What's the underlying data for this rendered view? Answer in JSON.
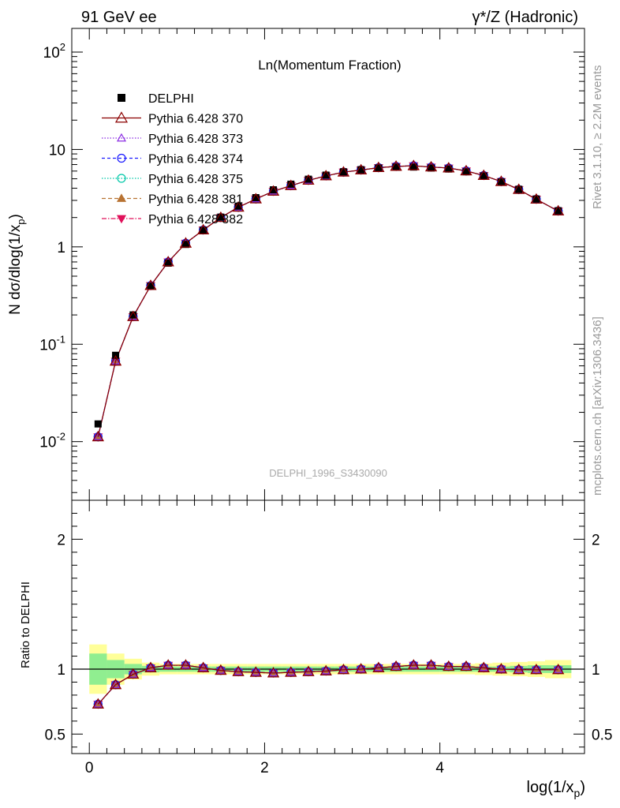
{
  "header": {
    "left_title": "91 GeV ee",
    "right_title": "γ*/Z (Hadronic)",
    "side_text_top": "Rivet 3.1.10, ≥ 2.2M events",
    "side_text_bottom": "mcplots.cern.ch [arXiv:1306.3436]",
    "watermark": "DELPHI_1996_S3430090"
  },
  "chart_data": [
    {
      "type": "scatter",
      "title": "Ln(Momentum Fraction)",
      "ylabel": "N dσ/dlog(1/x_p)",
      "xlabel": "log(1/x_p)",
      "yscale": "log",
      "xlim": [
        -0.2,
        5.65
      ],
      "ylim": [
        0.0025,
        175
      ],
      "ytick_labels": [
        "10^-2",
        "10^-1",
        "1",
        "10",
        "10^2"
      ],
      "legend_position": "top-left",
      "x": [
        0.1,
        0.3,
        0.5,
        0.7,
        0.9,
        1.1,
        1.3,
        1.5,
        1.7,
        1.9,
        2.1,
        2.3,
        2.5,
        2.7,
        2.9,
        3.1,
        3.3,
        3.5,
        3.7,
        3.9,
        4.1,
        4.3,
        4.5,
        4.7,
        4.9,
        5.1,
        5.35
      ],
      "series": [
        {
          "name": "DELPHI",
          "color": "#000000",
          "marker": "square",
          "values": [
            0.0152,
            0.077,
            0.2,
            0.395,
            0.68,
            1.06,
            1.48,
            2.02,
            2.62,
            3.2,
            3.85,
            4.4,
            4.95,
            5.45,
            5.9,
            6.2,
            6.45,
            6.6,
            6.6,
            6.45,
            6.3,
            5.9,
            5.35,
            4.65,
            3.9,
            3.1,
            2.35
          ]
        },
        {
          "name": "Pythia 6.428 370",
          "color": "#8b0000",
          "marker": "triangle-open",
          "values": [
            0.0112,
            0.067,
            0.192,
            0.4,
            0.7,
            1.09,
            1.49,
            2.0,
            2.55,
            3.1,
            3.72,
            4.25,
            4.82,
            5.35,
            5.85,
            6.15,
            6.5,
            6.7,
            6.8,
            6.6,
            6.45,
            6.02,
            5.4,
            4.68,
            3.88,
            3.08,
            2.33
          ]
        },
        {
          "name": "Pythia 6.428 373",
          "color": "#8a2be2",
          "marker": "triangle-open-small",
          "values": [
            0.0112,
            0.067,
            0.192,
            0.4,
            0.7,
            1.09,
            1.49,
            2.0,
            2.55,
            3.1,
            3.72,
            4.25,
            4.82,
            5.35,
            5.85,
            6.15,
            6.5,
            6.7,
            6.8,
            6.6,
            6.45,
            6.02,
            5.4,
            4.68,
            3.88,
            3.08,
            2.33
          ]
        },
        {
          "name": "Pythia 6.428 374",
          "color": "#1a1aff",
          "marker": "circle-open",
          "values": [
            0.0112,
            0.067,
            0.192,
            0.4,
            0.7,
            1.09,
            1.49,
            2.0,
            2.55,
            3.1,
            3.72,
            4.25,
            4.82,
            5.35,
            5.85,
            6.15,
            6.5,
            6.7,
            6.8,
            6.6,
            6.45,
            6.02,
            5.4,
            4.68,
            3.88,
            3.08,
            2.33
          ]
        },
        {
          "name": "Pythia 6.428 375",
          "color": "#00c8a8",
          "marker": "circle-open",
          "values": [
            0.0112,
            0.067,
            0.192,
            0.4,
            0.7,
            1.09,
            1.49,
            2.0,
            2.55,
            3.1,
            3.72,
            4.25,
            4.82,
            5.35,
            5.85,
            6.15,
            6.5,
            6.7,
            6.8,
            6.6,
            6.45,
            6.02,
            5.4,
            4.68,
            3.88,
            3.08,
            2.33
          ]
        },
        {
          "name": "Pythia 6.428 381",
          "color": "#b87333",
          "marker": "triangle-filled",
          "values": [
            0.0112,
            0.067,
            0.192,
            0.4,
            0.7,
            1.09,
            1.49,
            2.0,
            2.55,
            3.1,
            3.72,
            4.25,
            4.82,
            5.35,
            5.85,
            6.15,
            6.5,
            6.7,
            6.8,
            6.6,
            6.45,
            6.02,
            5.4,
            4.68,
            3.88,
            3.08,
            2.33
          ]
        },
        {
          "name": "Pythia 6.428 382",
          "color": "#e0105a",
          "marker": "triangle-down-filled",
          "values": [
            0.0112,
            0.067,
            0.192,
            0.4,
            0.7,
            1.09,
            1.49,
            2.0,
            2.55,
            3.1,
            3.72,
            4.25,
            4.82,
            5.35,
            5.85,
            6.15,
            6.5,
            6.7,
            6.8,
            6.6,
            6.45,
            6.02,
            5.4,
            4.68,
            3.88,
            3.08,
            2.33
          ]
        }
      ]
    },
    {
      "type": "line",
      "ylabel": "Ratio to DELPHI",
      "xlabel": "log(1/x_p)",
      "xlim": [
        -0.2,
        5.65
      ],
      "ylim": [
        0.35,
        2.3
      ],
      "xticks": [
        0,
        2,
        4
      ],
      "yticks": [
        0.5,
        1,
        2
      ],
      "x": [
        0.1,
        0.3,
        0.5,
        0.7,
        0.9,
        1.1,
        1.3,
        1.5,
        1.7,
        1.9,
        2.1,
        2.3,
        2.5,
        2.7,
        2.9,
        3.1,
        3.3,
        3.5,
        3.7,
        3.9,
        4.1,
        4.3,
        4.5,
        4.7,
        4.9,
        5.1,
        5.35
      ],
      "ratio": [
        0.73,
        0.88,
        0.96,
        1.01,
        1.03,
        1.03,
        1.01,
        0.99,
        0.98,
        0.975,
        0.97,
        0.975,
        0.98,
        0.985,
        0.995,
        1.0,
        1.01,
        1.02,
        1.03,
        1.03,
        1.02,
        1.02,
        1.01,
        1.0,
        0.995,
        0.995,
        0.995
      ],
      "band_edges": [
        0.0,
        0.2,
        0.4,
        0.6,
        0.8,
        1.0,
        1.2,
        1.4,
        1.6,
        1.8,
        2.0,
        2.2,
        2.4,
        2.6,
        2.8,
        3.0,
        3.2,
        3.4,
        3.6,
        3.8,
        4.0,
        4.2,
        4.4,
        4.6,
        4.8,
        5.0,
        5.2,
        5.5
      ],
      "band_stat": [
        0.12,
        0.07,
        0.04,
        0.025,
        0.02,
        0.02,
        0.02,
        0.02,
        0.02,
        0.02,
        0.02,
        0.02,
        0.02,
        0.02,
        0.02,
        0.02,
        0.02,
        0.02,
        0.02,
        0.02,
        0.02,
        0.02,
        0.02,
        0.02,
        0.025,
        0.03,
        0.03
      ],
      "band_total": [
        0.19,
        0.12,
        0.08,
        0.05,
        0.04,
        0.04,
        0.04,
        0.04,
        0.04,
        0.04,
        0.04,
        0.04,
        0.04,
        0.04,
        0.04,
        0.04,
        0.04,
        0.04,
        0.04,
        0.04,
        0.04,
        0.04,
        0.045,
        0.05,
        0.055,
        0.06,
        0.07
      ],
      "band_colors": {
        "stat": "#90ee90",
        "total": "#ffff99"
      }
    }
  ]
}
